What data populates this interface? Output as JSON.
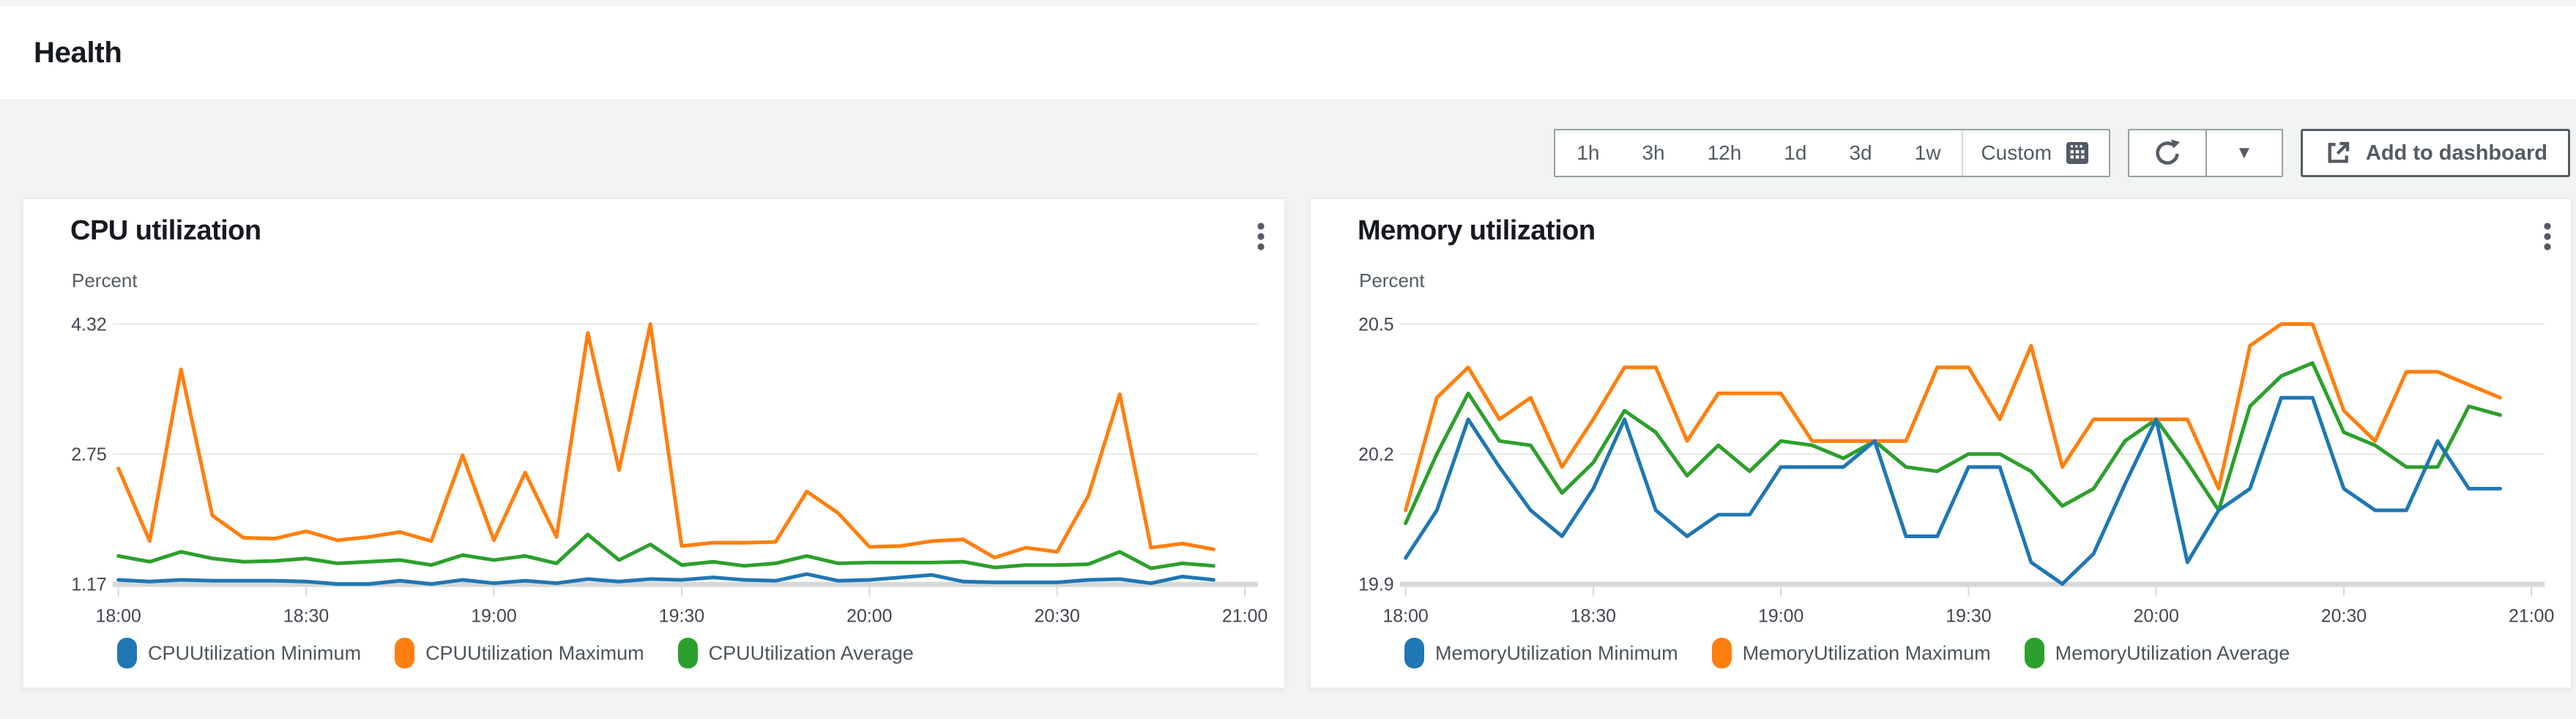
{
  "page": {
    "title": "Health"
  },
  "toolbar": {
    "time_ranges": [
      "1h",
      "3h",
      "12h",
      "1d",
      "3d",
      "1w"
    ],
    "custom_label": "Custom",
    "refresh_caret": "▼",
    "add_to_dashboard_label": "Add to dashboard"
  },
  "colors": {
    "page_bg": "#f2f3f3",
    "card_bg": "#ffffff",
    "series_blue": "#1f77b4",
    "series_orange": "#ff7f0e",
    "series_green": "#2ca02c",
    "axis_text": "#545b64",
    "tick_text": "#424650",
    "gridline": "#e9e9e9",
    "baseline": "#d5d9d9",
    "button_text": "#545b64"
  },
  "chart_data": [
    {
      "type": "line",
      "title": "CPU utilization",
      "ylabel": "Percent",
      "x_labels": [
        "18:00",
        "18:30",
        "19:00",
        "19:30",
        "20:00",
        "20:30",
        "21:00"
      ],
      "x_step_minutes": 5,
      "ylim": [
        1.17,
        4.32
      ],
      "y_gridlines": [
        {
          "value": 4.32,
          "label": "4.32"
        },
        {
          "value": 2.745,
          "label": "2.75"
        },
        {
          "value": 1.17,
          "label": "1.17"
        }
      ],
      "grid": true,
      "legend_position": "bottom",
      "series": [
        {
          "name": "CPUUtilization Minimum",
          "color": "#1f77b4",
          "values": [
            1.22,
            1.2,
            1.22,
            1.21,
            1.21,
            1.21,
            1.2,
            1.17,
            1.17,
            1.21,
            1.17,
            1.22,
            1.18,
            1.21,
            1.18,
            1.23,
            1.2,
            1.23,
            1.22,
            1.25,
            1.22,
            1.21,
            1.29,
            1.21,
            1.22,
            1.25,
            1.28,
            1.2,
            1.19,
            1.19,
            1.19,
            1.22,
            1.23,
            1.18,
            1.26,
            1.22
          ]
        },
        {
          "name": "CPUUtilization Maximum",
          "color": "#ff7f0e",
          "values": [
            2.57,
            1.69,
            3.77,
            2.0,
            1.73,
            1.72,
            1.81,
            1.7,
            1.74,
            1.8,
            1.69,
            2.73,
            1.7,
            2.52,
            1.74,
            4.21,
            2.55,
            4.32,
            1.63,
            1.67,
            1.67,
            1.68,
            2.29,
            2.03,
            1.62,
            1.63,
            1.69,
            1.71,
            1.49,
            1.61,
            1.56,
            2.24,
            3.47,
            1.61,
            1.66,
            1.59
          ]
        },
        {
          "name": "CPUUtilization Average",
          "color": "#2ca02c",
          "values": [
            1.51,
            1.44,
            1.56,
            1.48,
            1.44,
            1.45,
            1.48,
            1.42,
            1.44,
            1.46,
            1.4,
            1.52,
            1.46,
            1.51,
            1.42,
            1.77,
            1.46,
            1.65,
            1.4,
            1.44,
            1.39,
            1.42,
            1.51,
            1.42,
            1.43,
            1.43,
            1.43,
            1.44,
            1.37,
            1.4,
            1.4,
            1.41,
            1.56,
            1.36,
            1.42,
            1.39
          ]
        }
      ]
    },
    {
      "type": "line",
      "title": "Memory utilization",
      "ylabel": "Percent",
      "x_labels": [
        "18:00",
        "18:30",
        "19:00",
        "19:30",
        "20:00",
        "20:30",
        "21:00"
      ],
      "x_step_minutes": 5,
      "ylim": [
        19.9,
        20.5
      ],
      "y_gridlines": [
        {
          "value": 20.5,
          "label": "20.5"
        },
        {
          "value": 20.2,
          "label": "20.2"
        },
        {
          "value": 19.9,
          "label": "19.9"
        }
      ],
      "grid": true,
      "legend_position": "bottom",
      "series": [
        {
          "name": "MemoryUtilization Minimum",
          "color": "#1f77b4",
          "values": [
            19.96,
            20.07,
            20.28,
            20.17,
            20.07,
            20.01,
            20.12,
            20.28,
            20.07,
            20.01,
            20.06,
            20.06,
            20.17,
            20.17,
            20.17,
            20.23,
            20.01,
            20.01,
            20.17,
            20.17,
            19.95,
            19.9,
            19.97,
            20.13,
            20.28,
            19.95,
            20.07,
            20.12,
            20.33,
            20.33,
            20.12,
            20.07,
            20.07,
            20.23,
            20.12,
            20.12
          ]
        },
        {
          "name": "MemoryUtilization Maximum",
          "color": "#ff7f0e",
          "values": [
            20.07,
            20.33,
            20.4,
            20.28,
            20.33,
            20.17,
            20.28,
            20.4,
            20.4,
            20.23,
            20.34,
            20.34,
            20.34,
            20.23,
            20.23,
            20.23,
            20.23,
            20.4,
            20.4,
            20.28,
            20.45,
            20.17,
            20.28,
            20.28,
            20.28,
            20.28,
            20.12,
            20.45,
            20.5,
            20.5,
            20.3,
            20.23,
            20.39,
            20.39,
            20.36,
            20.33
          ]
        },
        {
          "name": "MemoryUtilization Average",
          "color": "#2ca02c",
          "values": [
            20.04,
            20.2,
            20.34,
            20.23,
            20.22,
            20.11,
            20.18,
            20.3,
            20.25,
            20.15,
            20.22,
            20.16,
            20.23,
            20.22,
            20.19,
            20.23,
            20.17,
            20.16,
            20.2,
            20.2,
            20.16,
            20.08,
            20.12,
            20.23,
            20.28,
            20.18,
            20.07,
            20.31,
            20.38,
            20.41,
            20.25,
            20.22,
            20.17,
            20.17,
            20.31,
            20.29
          ]
        }
      ]
    }
  ]
}
